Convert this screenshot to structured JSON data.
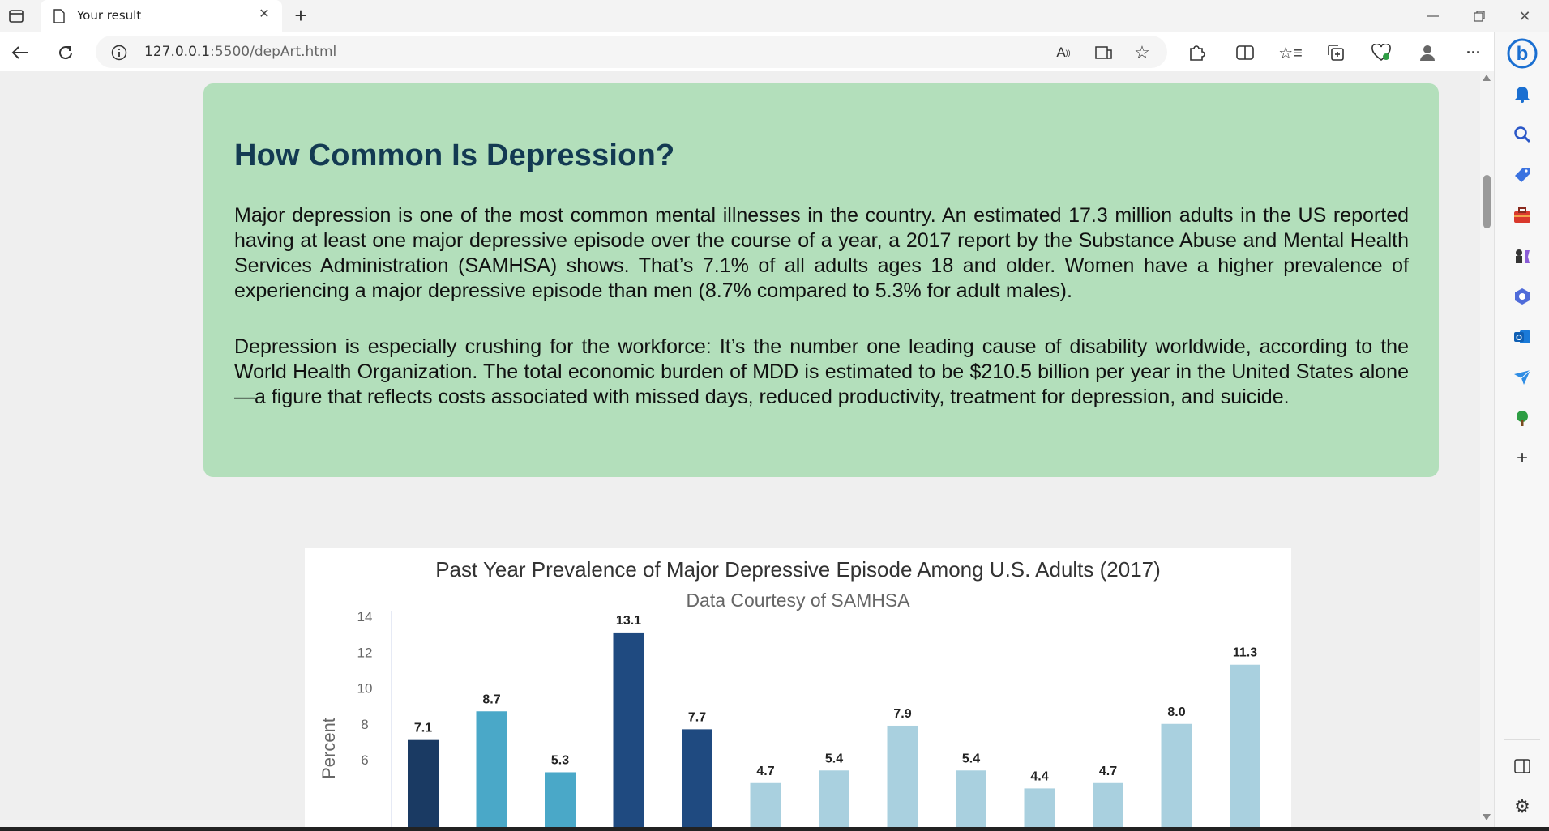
{
  "browser": {
    "tab_title": "Your result",
    "url_host": "127.0.0.1",
    "url_rest": ":5500/depArt.html"
  },
  "article": {
    "heading": "How Common Is Depression?",
    "paragraph1": "Major depression is one of the most common mental illnesses in the country. An estimated 17.3 million adults in the US reported having at least one major depressive episode over the course of a year, a 2017 report by the Substance Abuse and Mental Health Services Administration (SAMHSA) shows. That’s 7.1% of all adults ages 18 and older. Women have a higher prevalence of experiencing a major depressive episode than men (8.7% compared to 5.3% for adult males).",
    "paragraph2": "Depression is especially crushing for the workforce: It’s the number one leading cause of disability worldwide, according to the World Health Organization. The total economic burden of MDD is estimated to be $210.5 billion per year in the United States alone—a figure that reflects costs associated with missed days, reduced productivity, treatment for depression, and suicide."
  },
  "chart_data": {
    "type": "bar",
    "title": "Past Year Prevalence of Major Depressive Episode Among U.S. Adults (2017)",
    "subtitle": "Data Courtesy of SAMHSA",
    "ylabel": "Percent",
    "yticks": [
      6,
      8,
      10,
      12,
      14
    ],
    "ylim": [
      0,
      14
    ],
    "values": [
      7.1,
      8.7,
      5.3,
      13.1,
      7.7,
      4.7,
      5.4,
      7.9,
      5.4,
      4.4,
      4.7,
      8.0,
      11.3
    ],
    "labels": [
      "7.1",
      "8.7",
      "5.3",
      "13.1",
      "7.7",
      "4.7",
      "5.4",
      "7.9",
      "5.4",
      "4.4",
      "4.7",
      "8.0",
      "11.3"
    ],
    "colors": [
      "#1a3a63",
      "#4aa8c8",
      "#4aa8c8",
      "#1f4a80",
      "#1f4a80",
      "#a9d0df",
      "#a9d0df",
      "#a9d0df",
      "#a9d0df",
      "#a9d0df",
      "#a9d0df",
      "#a9d0df",
      "#a9d0df"
    ]
  }
}
